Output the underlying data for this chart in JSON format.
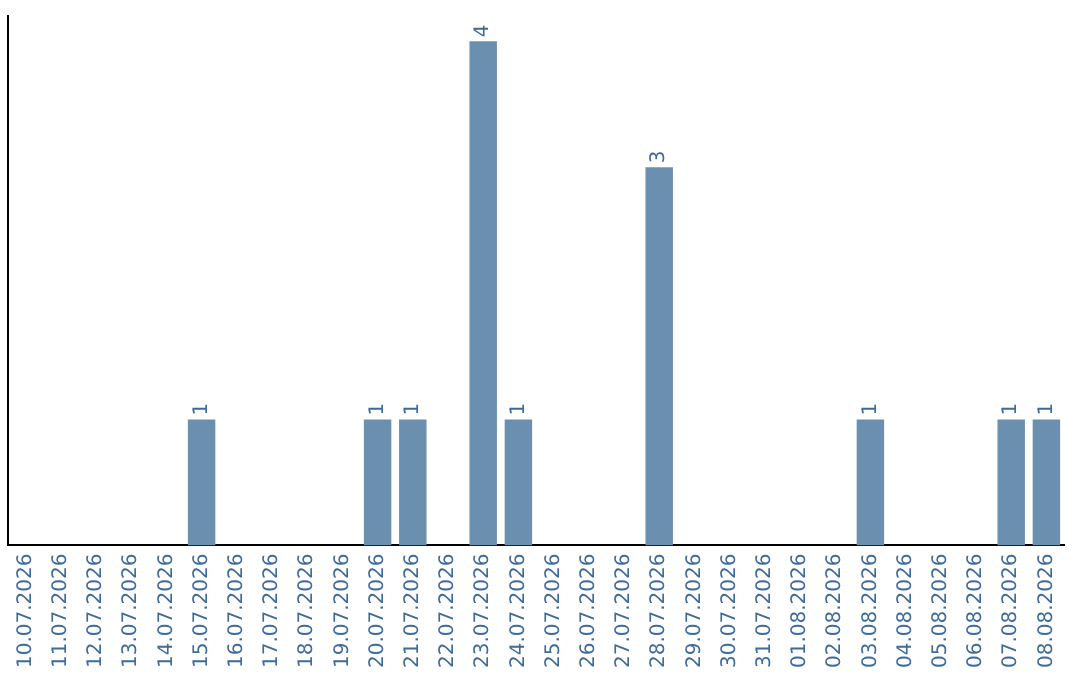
{
  "chart_data": {
    "type": "bar",
    "categories": [
      "10.07.2026",
      "11.07.2026",
      "12.07.2026",
      "13.07.2026",
      "14.07.2026",
      "15.07.2026",
      "16.07.2026",
      "17.07.2026",
      "18.07.2026",
      "19.07.2026",
      "20.07.2026",
      "21.07.2026",
      "22.07.2026",
      "23.07.2026",
      "24.07.2026",
      "25.07.2026",
      "26.07.2026",
      "27.07.2026",
      "28.07.2026",
      "29.07.2026",
      "30.07.2026",
      "31.07.2026",
      "01.08.2026",
      "02.08.2026",
      "03.08.2026",
      "04.08.2026",
      "05.08.2026",
      "06.08.2026",
      "07.08.2026",
      "08.08.2026"
    ],
    "values": [
      0,
      0,
      0,
      0,
      0,
      1,
      0,
      0,
      0,
      0,
      1,
      1,
      0,
      4,
      1,
      0,
      0,
      0,
      3,
      0,
      0,
      0,
      0,
      0,
      1,
      0,
      0,
      0,
      1,
      1
    ],
    "value_labels": [
      null,
      null,
      null,
      null,
      null,
      "1",
      null,
      null,
      null,
      null,
      "1",
      "1",
      null,
      "4",
      "1",
      null,
      null,
      null,
      "3",
      null,
      null,
      null,
      null,
      null,
      "1",
      null,
      null,
      null,
      "1",
      "1"
    ],
    "color": "#6b8fae",
    "ylim": [
      0,
      4.2
    ],
    "tick_labels": "x",
    "grid": false,
    "legend": false
  }
}
